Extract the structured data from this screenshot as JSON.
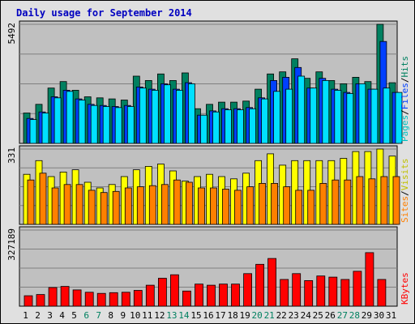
{
  "chart_data": {
    "type": "bar",
    "title": "Daily usage for September 2014",
    "categories": [
      "1",
      "2",
      "3",
      "4",
      "5",
      "6",
      "7",
      "8",
      "9",
      "10",
      "11",
      "12",
      "13",
      "14",
      "15",
      "16",
      "17",
      "18",
      "19",
      "20",
      "21",
      "22",
      "23",
      "24",
      "25",
      "26",
      "27",
      "28",
      "29",
      "30",
      "31"
    ],
    "weekend_days": [
      "6",
      "7",
      "13",
      "14",
      "20",
      "21",
      "27",
      "28"
    ],
    "panels": [
      {
        "id": "top",
        "ytick_label": "5492",
        "ylim": [
          0,
          5492
        ],
        "legend": [
          "Pages",
          "/",
          "Files",
          "/",
          "Hits"
        ],
        "series": [
          {
            "name": "Hits",
            "color": "#008060",
            "values": [
              1400,
              1800,
              2550,
              2850,
              2450,
              2150,
              2100,
              2050,
              2000,
              3100,
              2900,
              3200,
              2900,
              3250,
              1600,
              1800,
              1900,
              1900,
              1950,
              2500,
              3200,
              3300,
              3900,
              3000,
              3300,
              2900,
              2750,
              3050,
              2850,
              5492,
              2800
            ]
          },
          {
            "name": "Files",
            "color": "#0040ff",
            "values": [
              1150,
              1450,
              2150,
              2450,
              2050,
              1800,
              1750,
              1700,
              1750,
              2600,
              2500,
              2750,
              2500,
              2800,
              1300,
              1500,
              1600,
              1600,
              1650,
              2100,
              2900,
              3050,
              3500,
              2550,
              3000,
              2500,
              2350,
              2750,
              2500,
              4700,
              2350
            ]
          },
          {
            "name": "Pages",
            "color": "#00e0ff",
            "values": [
              1100,
              1400,
              2100,
              2400,
              2000,
              1750,
              1700,
              1650,
              1700,
              2550,
              2450,
              2700,
              2450,
              2750,
              1300,
              1450,
              1550,
              1550,
              1600,
              2050,
              2400,
              2500,
              3100,
              2550,
              2900,
              2450,
              2300,
              2750,
              2500,
              2550,
              2350
            ]
          }
        ]
      },
      {
        "id": "middle",
        "ytick_label": "331",
        "ylim": [
          0,
          331
        ],
        "legend": [
          "Sites",
          "/",
          "Visits"
        ],
        "series": [
          {
            "name": "Visits",
            "color": "#ffff00",
            "values": [
              220,
              280,
              210,
              230,
              240,
              185,
              160,
              175,
              210,
              240,
              255,
              265,
              235,
              190,
              210,
              220,
              210,
              200,
              225,
              280,
              310,
              260,
              280,
              280,
              280,
              280,
              290,
              320,
              320,
              331,
              300
            ]
          },
          {
            "name": "Sites",
            "color": "#ff8000",
            "values": [
              195,
              225,
              160,
              175,
              175,
              150,
              140,
              145,
              160,
              165,
              170,
              175,
              195,
              185,
              160,
              160,
              155,
              150,
              165,
              180,
              180,
              165,
              150,
              150,
              180,
              195,
              195,
              210,
              200,
              210,
              210
            ]
          }
        ]
      },
      {
        "id": "bottom",
        "ytick_label": "327189",
        "ylim": [
          0,
          327189
        ],
        "legend": [
          "KBytes"
        ],
        "series": [
          {
            "name": "KBytes",
            "color": "#ff0000",
            "values": [
              45000,
              50000,
              80000,
              85000,
              70000,
              60000,
              55000,
              58000,
              60000,
              68000,
              90000,
              120000,
              135000,
              65000,
              95000,
              90000,
              95000,
              95000,
              140000,
              180000,
              205000,
              115000,
              140000,
              110000,
              130000,
              125000,
              115000,
              150000,
              230000,
              115000,
              0
            ]
          }
        ]
      }
    ],
    "legend_colors": {
      "Pages": "#00c0c0",
      "Files": "#0040ff",
      "Hits": "#008060",
      "Sites": "#ff8000",
      "Visits": "#c0c000",
      "KBytes": "#ff0000",
      "separator": "#000000"
    },
    "colors": {
      "title": "#0000c0",
      "plot_bg": "#c0c0c0",
      "outer_bg": "#e0e0e0",
      "gridline": "#808080",
      "weekday_label": "#000000",
      "weekend_label": "#008060"
    }
  }
}
